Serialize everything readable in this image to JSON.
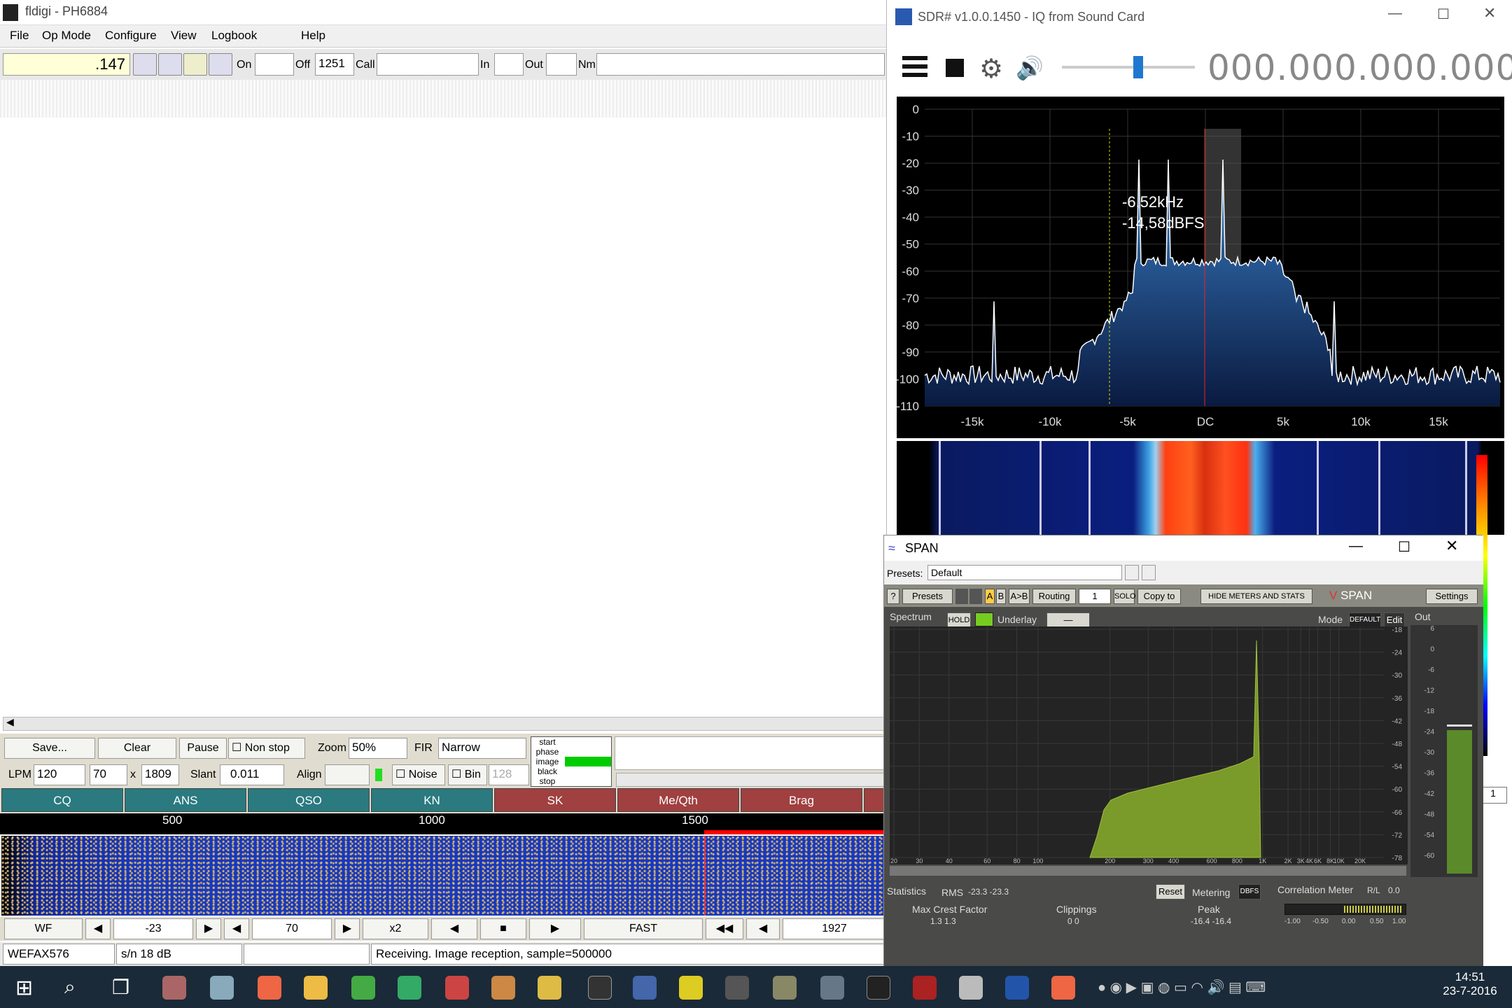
{
  "fldigi": {
    "title": "fldigi - PH6884",
    "menu": [
      "File",
      "Op Mode",
      "Configure",
      "View",
      "Logbook",
      "Help"
    ],
    "freq": ".147",
    "labels": {
      "on": "On",
      "off": "Off",
      "call": "Call",
      "in": "In",
      "out": "Out",
      "nm": "Nm"
    },
    "off_value": "1251",
    "controls": {
      "save": "Save...",
      "clear": "Clear",
      "pause": "Pause",
      "nonstop": "Non stop",
      "zoom_label": "Zoom",
      "zoom": "50%",
      "fir_label": "FIR",
      "fir": "Narrow",
      "lpm_label": "LPM",
      "lpm": "120",
      "width": "70",
      "x": "x",
      "height": "1809",
      "slant_label": "Slant",
      "slant": "0.011",
      "align": "Align",
      "noise": "Noise",
      "bin": "Bin",
      "bin_val": "128",
      "phase": [
        "start",
        "phase",
        "image",
        "black",
        "stop"
      ]
    },
    "macros": [
      {
        "label": "CQ",
        "color": "#2a7a80"
      },
      {
        "label": "ANS",
        "color": "#2a7a80"
      },
      {
        "label": "QSO",
        "color": "#2a7a80"
      },
      {
        "label": "KN",
        "color": "#2a7a80"
      },
      {
        "label": "SK",
        "color": "#a04040"
      },
      {
        "label": "Me/Qth",
        "color": "#a04040"
      },
      {
        "label": "Brag",
        "color": "#a04040"
      }
    ],
    "ruler": [
      "500",
      "1000",
      "1500"
    ],
    "wf": {
      "mode": "WF",
      "level": "-23",
      "range": "70",
      "mult": "x2",
      "speed": "FAST",
      "freq": "1927"
    },
    "status": {
      "mode": "WEFAX576",
      "sn": "s/n  18 dB",
      "msg": "Receiving. Image reception, sample=500000"
    }
  },
  "sdr": {
    "title": "SDR# v1.0.0.1450 - IQ from Sound Card",
    "freq": "000.000.000.000",
    "cursor": [
      "-6,52kHz",
      "-14,58dBFS"
    ],
    "y_ticks": [
      "0",
      "-10",
      "-20",
      "-30",
      "-40",
      "-50",
      "-60",
      "-70",
      "-80",
      "-90",
      "-100",
      "-110"
    ],
    "x_ticks": [
      "-15k",
      "-10k",
      "-5k",
      "DC",
      "5k",
      "10k",
      "15k"
    ]
  },
  "span": {
    "title": "SPAN",
    "presets_label": "Presets:",
    "preset": "Default",
    "tb": [
      "?",
      "Presets",
      "A",
      "B",
      "A>B",
      "Routing",
      "1",
      "SOLO",
      "Copy to",
      "HIDE METERS AND STATS",
      "Settings"
    ],
    "brand": "SPAN",
    "spectrum": "Spectrum",
    "hold": "HOLD",
    "underlay": "Underlay",
    "mode": "Mode",
    "default": "DEFAULT",
    "edit": "Edit",
    "out": "Out",
    "db_ticks": [
      "-18",
      "-24",
      "-30",
      "-36",
      "-42",
      "-48",
      "-54",
      "-60",
      "-66",
      "-72",
      "-78"
    ],
    "out_ticks": [
      "6",
      "0",
      "-6",
      "-12",
      "-18",
      "-24",
      "-30",
      "-36",
      "-42",
      "-48",
      "-54",
      "-60"
    ],
    "f_ticks": [
      "20",
      "30",
      "40",
      "60",
      "80",
      "100",
      "200",
      "300",
      "400",
      "600",
      "800",
      "1K",
      "2K",
      "3K",
      "4K",
      "6K",
      "8K",
      "10K",
      "20K"
    ],
    "stats": {
      "label": "Statistics",
      "rms": "RMS",
      "rms_val": "-23.3  -23.3",
      "reset": "Reset",
      "metering": "Metering",
      "dbfs": "DBFS",
      "corr": "Correlation Meter",
      "rl": "R/L",
      "rl_val": "0.0",
      "crest": "Max Crest Factor",
      "crest_val": "1.3     1.3",
      "clip": "Clippings",
      "clip_val": "0     0",
      "peak": "Peak",
      "peak_val": "-16.4   -16.4",
      "corr_ticks": [
        "-1.00",
        "-0.50",
        "0.00",
        "0.50",
        "1.00"
      ]
    }
  },
  "taskbar": {
    "time": "14:51",
    "date": "23-7-2016"
  }
}
